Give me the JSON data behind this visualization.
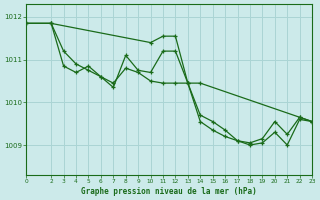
{
  "title": "Graphe pression niveau de la mer (hPa)",
  "bg_color": "#cceaea",
  "grid_color": "#aad4d4",
  "line_color": "#1a6b1a",
  "xlim": [
    0,
    23
  ],
  "ylim": [
    1008.3,
    1012.3
  ],
  "yticks": [
    1009,
    1010,
    1011,
    1012
  ],
  "xticks": [
    0,
    2,
    3,
    4,
    5,
    6,
    7,
    8,
    9,
    10,
    11,
    12,
    13,
    14,
    15,
    16,
    17,
    18,
    19,
    20,
    21,
    22,
    23
  ],
  "series": [
    {
      "x": [
        0,
        2,
        10,
        11,
        12,
        13,
        14,
        22,
        23
      ],
      "y": [
        1011.85,
        1011.85,
        1011.4,
        1011.55,
        1011.55,
        1010.45,
        1010.45,
        1009.65,
        1009.55
      ]
    },
    {
      "x": [
        0,
        2,
        3,
        4,
        5,
        6,
        7,
        8,
        9,
        10,
        11,
        12,
        13,
        14,
        15,
        16,
        17,
        18,
        19,
        20,
        21,
        22,
        23
      ],
      "y": [
        1011.85,
        1011.85,
        1011.2,
        1010.9,
        1010.75,
        1010.6,
        1010.45,
        1010.8,
        1010.7,
        1010.5,
        1010.45,
        1010.45,
        1010.45,
        1009.7,
        1009.55,
        1009.35,
        1009.1,
        1009.05,
        1009.15,
        1009.55,
        1009.25,
        1009.65,
        1009.55
      ]
    },
    {
      "x": [
        0,
        2,
        3,
        4,
        5,
        6,
        7,
        8,
        9,
        10,
        11,
        12,
        13,
        14,
        15,
        16,
        17,
        18,
        19,
        20,
        21,
        22,
        23
      ],
      "y": [
        1011.85,
        1011.85,
        1010.85,
        1010.7,
        1010.85,
        1010.6,
        1010.35,
        1011.1,
        1010.75,
        1010.7,
        1011.2,
        1011.2,
        1010.45,
        1009.55,
        1009.35,
        1009.2,
        1009.1,
        1009.0,
        1009.05,
        1009.3,
        1009.0,
        1009.6,
        1009.55
      ]
    }
  ]
}
